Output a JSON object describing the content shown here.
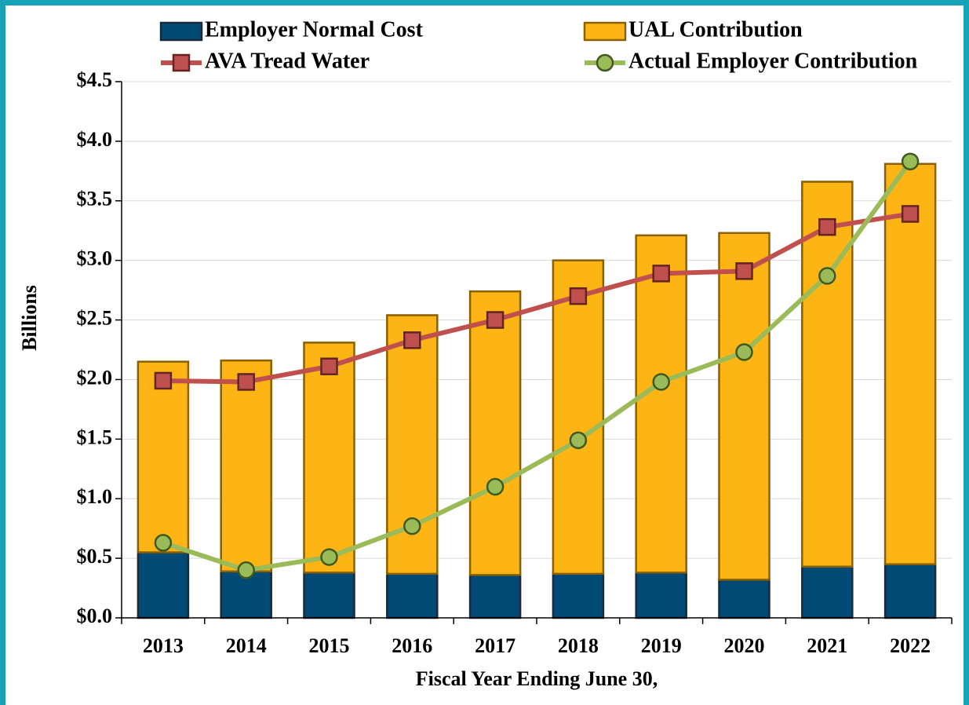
{
  "chart_data": {
    "type": "bar",
    "stacked": true,
    "x_label": "Fiscal Year Ending June 30,",
    "y_label": "Billions",
    "categories": [
      "2013",
      "2014",
      "2015",
      "2016",
      "2017",
      "2018",
      "2019",
      "2020",
      "2021",
      "2022"
    ],
    "series": [
      {
        "name": "Employer Normal Cost",
        "type": "bar",
        "color": "#004a75",
        "values": [
          0.55,
          0.39,
          0.38,
          0.37,
          0.36,
          0.37,
          0.38,
          0.32,
          0.43,
          0.45
        ]
      },
      {
        "name": "UAL Contribution",
        "type": "bar",
        "color": "#fdb515",
        "values": [
          1.6,
          1.77,
          1.93,
          2.17,
          2.38,
          2.63,
          2.83,
          2.91,
          3.23,
          3.36
        ]
      },
      {
        "name": "AVA Tread Water",
        "type": "line",
        "color": "#c0504d",
        "values": [
          1.99,
          1.98,
          2.11,
          2.33,
          2.5,
          2.7,
          2.89,
          2.91,
          3.28,
          3.39
        ]
      },
      {
        "name": "Actual Employer Contribution",
        "type": "line",
        "color": "#9bbb59",
        "values": [
          0.63,
          0.4,
          0.51,
          0.77,
          1.1,
          1.49,
          1.98,
          2.23,
          2.87,
          3.83
        ]
      }
    ],
    "ylim": [
      0,
      4.5
    ],
    "yticks": [
      {
        "value": 0,
        "label": "$0.0"
      },
      {
        "value": 0.5,
        "label": "$0.5"
      },
      {
        "value": 1,
        "label": "$1.0"
      },
      {
        "value": 1.5,
        "label": "$1.5"
      },
      {
        "value": 2,
        "label": "$2.0"
      },
      {
        "value": 2.5,
        "label": "$2.5"
      },
      {
        "value": 3,
        "label": "$3.0"
      },
      {
        "value": 3.5,
        "label": "$3.5"
      },
      {
        "value": 4,
        "label": "$4.0"
      },
      {
        "value": 4.5,
        "label": "$4.5"
      }
    ],
    "grid": true,
    "legend": "top"
  }
}
